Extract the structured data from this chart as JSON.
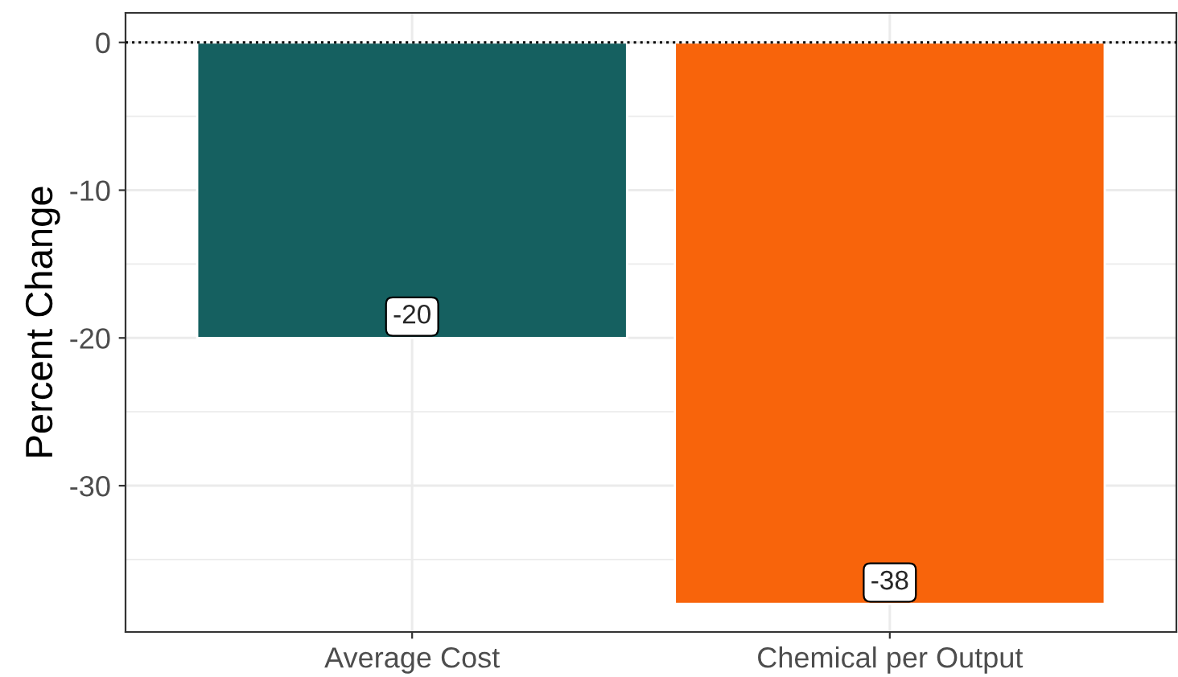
{
  "chart_data": {
    "type": "bar",
    "ylabel": "Percent Change",
    "categories": [
      "Average Cost",
      "Chemical per Output"
    ],
    "values": [
      -20,
      -38
    ],
    "colors": [
      "#156060",
      "#f8640b"
    ],
    "ylim": [
      -39.9,
      2.0
    ],
    "yticks": [
      0,
      -10,
      -20,
      -30
    ],
    "grid": true,
    "data_labels": true,
    "ref_lines": [
      {
        "axis": "y",
        "value": 0,
        "line_style": "dotted",
        "color": "#000000"
      }
    ]
  }
}
